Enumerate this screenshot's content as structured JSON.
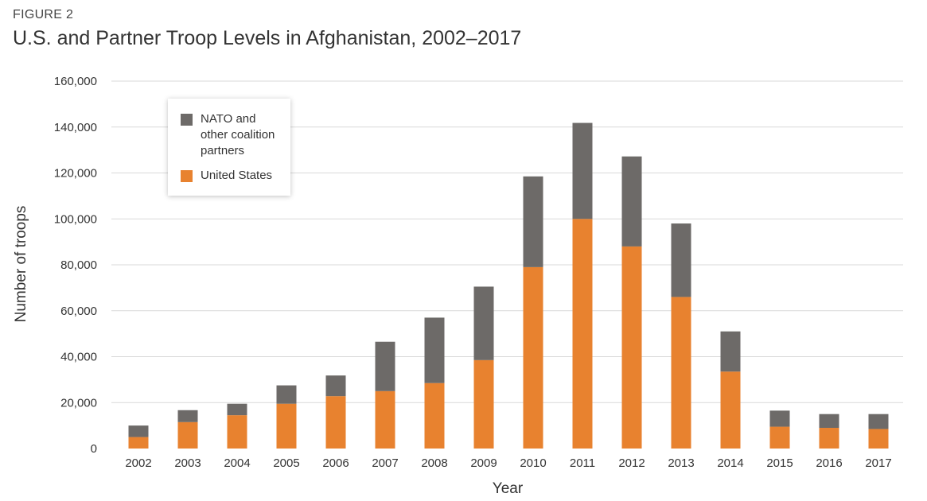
{
  "figure_label": "FIGURE 2",
  "colors": {
    "us": "#e8822f",
    "nato": "#6d6a68",
    "grid": "#d9d9d9",
    "text": "#333333"
  },
  "legend": {
    "nato": "NATO and other coalition partners",
    "us": "United States"
  },
  "chart_data": {
    "type": "bar",
    "stacked": true,
    "title": "U.S. and Partner Troop Levels in Afghanistan, 2002–2017",
    "xlabel": "Year",
    "ylabel": "Number of troops",
    "ylim": [
      0,
      160000
    ],
    "yticks": [
      0,
      20000,
      40000,
      60000,
      80000,
      100000,
      120000,
      140000,
      160000
    ],
    "ytick_labels": [
      "0",
      "20,000",
      "40,000",
      "60,000",
      "80,000",
      "100,000",
      "120,000",
      "140,000",
      "160,000"
    ],
    "categories": [
      "2002",
      "2003",
      "2004",
      "2005",
      "2006",
      "2007",
      "2008",
      "2009",
      "2010",
      "2011",
      "2012",
      "2013",
      "2014",
      "2015",
      "2016",
      "2017"
    ],
    "legend_position": "top-left",
    "series": [
      {
        "name": "United States",
        "key": "us",
        "values": [
          5000,
          11500,
          14500,
          19500,
          22800,
          25000,
          28500,
          38500,
          79000,
          100000,
          88000,
          66000,
          33500,
          9500,
          9000,
          8500
        ]
      },
      {
        "name": "NATO and other coalition partners",
        "key": "nato",
        "values": [
          5000,
          5200,
          5000,
          8000,
          9000,
          21500,
          28500,
          32000,
          39500,
          41800,
          39200,
          32000,
          17500,
          7000,
          6000,
          6500
        ]
      }
    ]
  }
}
